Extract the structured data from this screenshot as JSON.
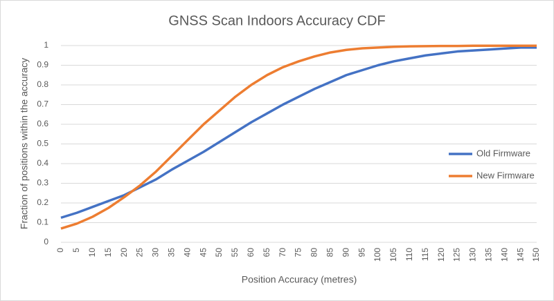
{
  "chart_data": {
    "type": "line",
    "title": "GNSS Scan Indoors Accuracy CDF",
    "x_label": "Position Accuracy (metres)",
    "y_label": "Fraction of positions within the accuracy",
    "x": [
      0,
      5,
      10,
      15,
      20,
      25,
      30,
      35,
      40,
      45,
      50,
      55,
      60,
      65,
      70,
      75,
      80,
      85,
      90,
      95,
      100,
      105,
      110,
      115,
      120,
      125,
      130,
      135,
      140,
      145,
      150
    ],
    "series": [
      {
        "name": "Old Firmware",
        "color": "#4472c4",
        "values": [
          0.125,
          0.15,
          0.18,
          0.21,
          0.24,
          0.28,
          0.32,
          0.37,
          0.415,
          0.46,
          0.51,
          0.56,
          0.61,
          0.655,
          0.7,
          0.74,
          0.78,
          0.815,
          0.85,
          0.875,
          0.9,
          0.92,
          0.935,
          0.95,
          0.96,
          0.97,
          0.975,
          0.98,
          0.985,
          0.99,
          0.99
        ]
      },
      {
        "name": "New Firmware",
        "color": "#ed7d31",
        "values": [
          0.07,
          0.095,
          0.13,
          0.175,
          0.23,
          0.29,
          0.36,
          0.44,
          0.52,
          0.6,
          0.67,
          0.74,
          0.8,
          0.85,
          0.89,
          0.92,
          0.945,
          0.965,
          0.978,
          0.986,
          0.99,
          0.994,
          0.996,
          0.997,
          0.998,
          0.998,
          0.999,
          0.999,
          0.999,
          0.999,
          0.999
        ]
      }
    ],
    "xlim": [
      0,
      150
    ],
    "xticks": [
      0,
      5,
      10,
      15,
      20,
      25,
      30,
      35,
      40,
      45,
      50,
      55,
      60,
      65,
      70,
      75,
      80,
      85,
      90,
      95,
      100,
      105,
      110,
      115,
      120,
      125,
      130,
      135,
      140,
      145,
      150
    ],
    "ylim": [
      0,
      1
    ],
    "yticks": [
      0,
      0.1,
      0.2,
      0.3,
      0.4,
      0.5,
      0.6,
      0.7,
      0.8,
      0.9,
      1
    ],
    "grid": true,
    "legend": "right"
  }
}
